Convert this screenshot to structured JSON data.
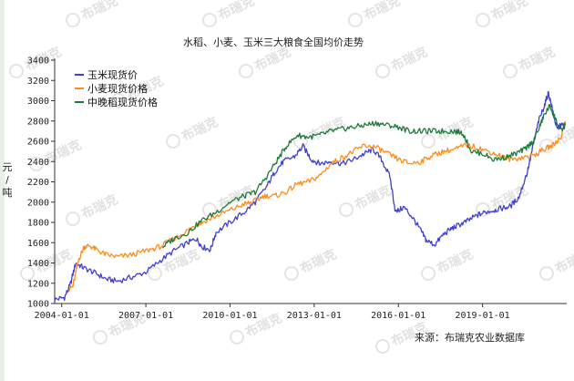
{
  "watermark": "布瑞克",
  "source_text": "来源：布瑞克农业数据库",
  "chart_data": {
    "type": "line",
    "title": "水稻、小麦、玉米三大粮食全国均价走势",
    "xlabel": "",
    "ylabel": "元/吨",
    "ylabel_chars": [
      "元",
      "/",
      "吨"
    ],
    "ylim": [
      1000,
      3400
    ],
    "yticks": [
      1000,
      1200,
      1400,
      1600,
      1800,
      2000,
      2200,
      2400,
      2600,
      2800,
      3000,
      3200,
      3400
    ],
    "xlim": [
      2003.75,
      2022.0
    ],
    "xticks": [
      {
        "label": "2004-01-01",
        "value": 2004.0
      },
      {
        "label": "2007-01-01",
        "value": 2007.0
      },
      {
        "label": "2010-01-01",
        "value": 2010.0
      },
      {
        "label": "2013-01-01",
        "value": 2013.0
      },
      {
        "label": "2016-01-01",
        "value": 2016.0
      },
      {
        "label": "2019-01-01",
        "value": 2019.0
      }
    ],
    "grid": false,
    "legend_position": "top-left",
    "series": [
      {
        "name": "玉米现货价",
        "color": "#3f3fd0",
        "points": [
          [
            2003.75,
            1040
          ],
          [
            2004.1,
            1060
          ],
          [
            2004.3,
            1180
          ],
          [
            2004.5,
            1400
          ],
          [
            2004.8,
            1350
          ],
          [
            2005.2,
            1300
          ],
          [
            2005.6,
            1240
          ],
          [
            2006.0,
            1220
          ],
          [
            2006.5,
            1260
          ],
          [
            2007.0,
            1310
          ],
          [
            2007.5,
            1420
          ],
          [
            2008.0,
            1520
          ],
          [
            2008.5,
            1600
          ],
          [
            2008.8,
            1640
          ],
          [
            2009.0,
            1560
          ],
          [
            2009.3,
            1530
          ],
          [
            2009.5,
            1700
          ],
          [
            2010.0,
            1800
          ],
          [
            2010.5,
            1900
          ],
          [
            2010.9,
            2000
          ],
          [
            2011.3,
            2150
          ],
          [
            2011.6,
            2300
          ],
          [
            2011.9,
            2400
          ],
          [
            2012.3,
            2450
          ],
          [
            2012.6,
            2550
          ],
          [
            2012.9,
            2420
          ],
          [
            2013.2,
            2380
          ],
          [
            2013.6,
            2400
          ],
          [
            2014.0,
            2380
          ],
          [
            2014.4,
            2420
          ],
          [
            2014.8,
            2480
          ],
          [
            2015.1,
            2520
          ],
          [
            2015.4,
            2420
          ],
          [
            2015.7,
            2250
          ],
          [
            2015.9,
            1900
          ],
          [
            2016.2,
            1950
          ],
          [
            2016.5,
            1850
          ],
          [
            2016.8,
            1720
          ],
          [
            2017.0,
            1620
          ],
          [
            2017.3,
            1580
          ],
          [
            2017.6,
            1680
          ],
          [
            2017.9,
            1740
          ],
          [
            2018.2,
            1780
          ],
          [
            2018.5,
            1820
          ],
          [
            2018.8,
            1870
          ],
          [
            2019.1,
            1900
          ],
          [
            2019.4,
            1920
          ],
          [
            2019.7,
            1940
          ],
          [
            2020.0,
            1960
          ],
          [
            2020.3,
            2050
          ],
          [
            2020.6,
            2300
          ],
          [
            2020.8,
            2550
          ],
          [
            2021.0,
            2800
          ],
          [
            2021.2,
            2950
          ],
          [
            2021.35,
            3080
          ],
          [
            2021.5,
            2900
          ],
          [
            2021.65,
            2720
          ],
          [
            2021.8,
            2760
          ],
          [
            2021.95,
            2760
          ]
        ]
      },
      {
        "name": "小麦现货价格",
        "color": "#ff8c1a",
        "points": [
          [
            2004.25,
            1140
          ],
          [
            2004.4,
            1170
          ],
          [
            2004.6,
            1430
          ],
          [
            2004.8,
            1560
          ],
          [
            2005.0,
            1570
          ],
          [
            2005.3,
            1520
          ],
          [
            2005.6,
            1480
          ],
          [
            2006.0,
            1460
          ],
          [
            2006.5,
            1480
          ],
          [
            2007.0,
            1520
          ],
          [
            2007.5,
            1560
          ],
          [
            2008.0,
            1640
          ],
          [
            2008.5,
            1720
          ],
          [
            2008.8,
            1780
          ],
          [
            2009.0,
            1800
          ],
          [
            2009.5,
            1860
          ],
          [
            2010.0,
            1920
          ],
          [
            2010.5,
            1980
          ],
          [
            2010.8,
            2000
          ],
          [
            2011.2,
            2060
          ],
          [
            2011.6,
            2060
          ],
          [
            2012.0,
            2100
          ],
          [
            2012.4,
            2180
          ],
          [
            2012.8,
            2200
          ],
          [
            2013.2,
            2260
          ],
          [
            2013.6,
            2380
          ],
          [
            2014.0,
            2440
          ],
          [
            2014.4,
            2500
          ],
          [
            2014.8,
            2560
          ],
          [
            2015.2,
            2540
          ],
          [
            2015.6,
            2480
          ],
          [
            2016.0,
            2420
          ],
          [
            2016.4,
            2380
          ],
          [
            2016.8,
            2400
          ],
          [
            2017.2,
            2460
          ],
          [
            2017.6,
            2500
          ],
          [
            2018.0,
            2520
          ],
          [
            2018.4,
            2560
          ],
          [
            2018.8,
            2540
          ],
          [
            2019.2,
            2500
          ],
          [
            2019.6,
            2460
          ],
          [
            2020.0,
            2420
          ],
          [
            2020.4,
            2440
          ],
          [
            2020.8,
            2460
          ],
          [
            2021.2,
            2520
          ],
          [
            2021.5,
            2560
          ],
          [
            2021.8,
            2640
          ],
          [
            2021.95,
            2800
          ]
        ]
      },
      {
        "name": "中晚稻现货价格",
        "color": "#1a7a3a",
        "points": [
          [
            2007.6,
            1560
          ],
          [
            2008.0,
            1640
          ],
          [
            2008.5,
            1700
          ],
          [
            2009.0,
            1820
          ],
          [
            2009.5,
            1900
          ],
          [
            2010.0,
            2000
          ],
          [
            2010.5,
            2060
          ],
          [
            2010.9,
            2100
          ],
          [
            2011.3,
            2250
          ],
          [
            2011.7,
            2420
          ],
          [
            2012.0,
            2550
          ],
          [
            2012.4,
            2660
          ],
          [
            2012.8,
            2640
          ],
          [
            2013.2,
            2660
          ],
          [
            2013.6,
            2700
          ],
          [
            2014.0,
            2720
          ],
          [
            2014.4,
            2740
          ],
          [
            2014.8,
            2760
          ],
          [
            2015.2,
            2780
          ],
          [
            2015.6,
            2760
          ],
          [
            2016.0,
            2740
          ],
          [
            2016.4,
            2700
          ],
          [
            2016.8,
            2700
          ],
          [
            2017.2,
            2700
          ],
          [
            2017.6,
            2700
          ],
          [
            2018.0,
            2700
          ],
          [
            2018.3,
            2680
          ],
          [
            2018.6,
            2500
          ],
          [
            2019.0,
            2480
          ],
          [
            2019.4,
            2420
          ],
          [
            2019.8,
            2440
          ],
          [
            2020.2,
            2480
          ],
          [
            2020.5,
            2520
          ],
          [
            2020.8,
            2600
          ],
          [
            2021.0,
            2720
          ],
          [
            2021.2,
            2860
          ],
          [
            2021.4,
            2950
          ],
          [
            2021.6,
            2820
          ],
          [
            2021.8,
            2700
          ],
          [
            2021.95,
            2760
          ]
        ]
      }
    ]
  }
}
